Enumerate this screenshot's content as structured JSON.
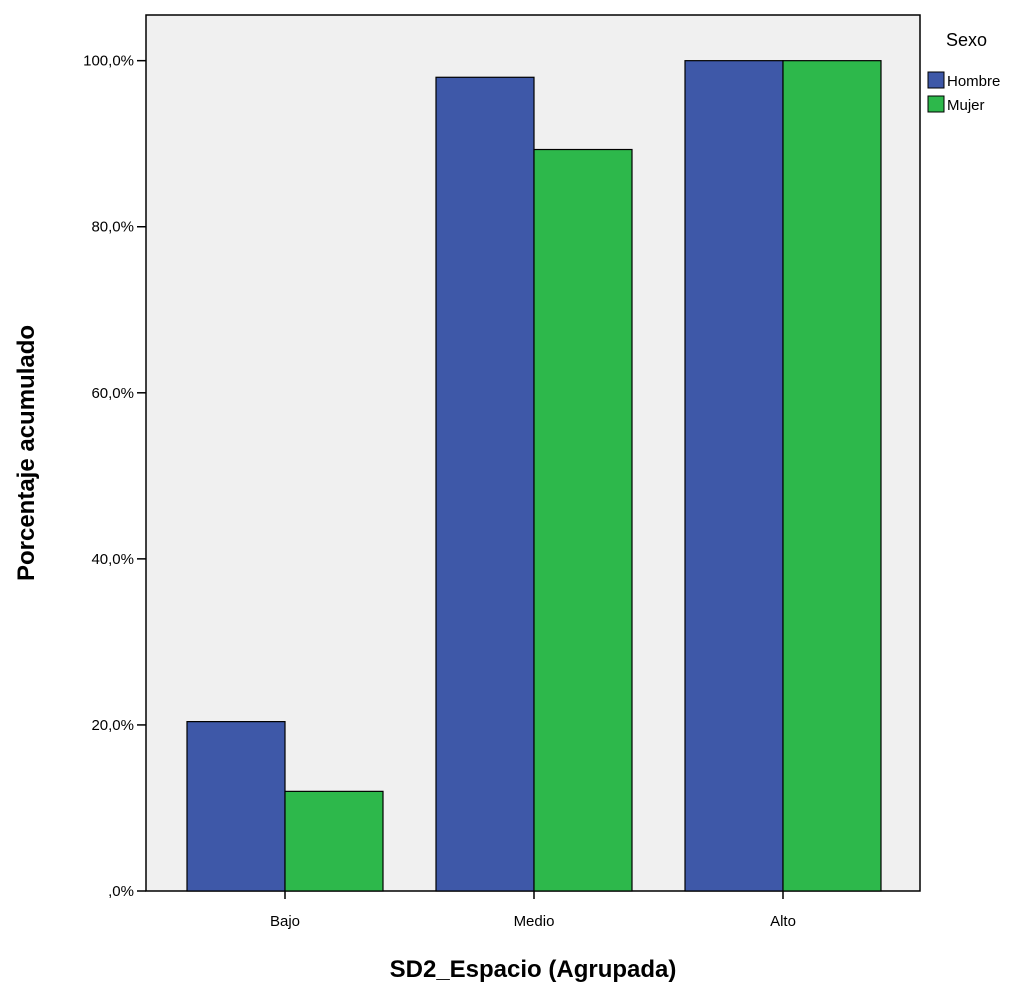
{
  "chart_data": {
    "type": "bar",
    "xlabel": "SD2_Espacio (Agrupada)",
    "ylabel": "Porcentaje acumulado",
    "categories": [
      "Bajo",
      "Medio",
      "Alto"
    ],
    "series": [
      {
        "name": "Hombre",
        "color": "#3e58a8",
        "values": [
          20.4,
          98.0,
          100.0
        ]
      },
      {
        "name": "Mujer",
        "color": "#2db84b",
        "values": [
          12.0,
          89.3,
          100.0
        ]
      }
    ],
    "ylim": [
      0,
      105.5
    ],
    "yticks": [
      0,
      20,
      40,
      60,
      80,
      100
    ],
    "ytick_labels": [
      ",0%",
      "20,0%",
      "40,0%",
      "60,0%",
      "80,0%",
      "100,0%"
    ],
    "legend": {
      "title": "Sexo",
      "placement": "top-right-outside"
    },
    "plot_background": "#f0f0f0",
    "grid": false
  }
}
